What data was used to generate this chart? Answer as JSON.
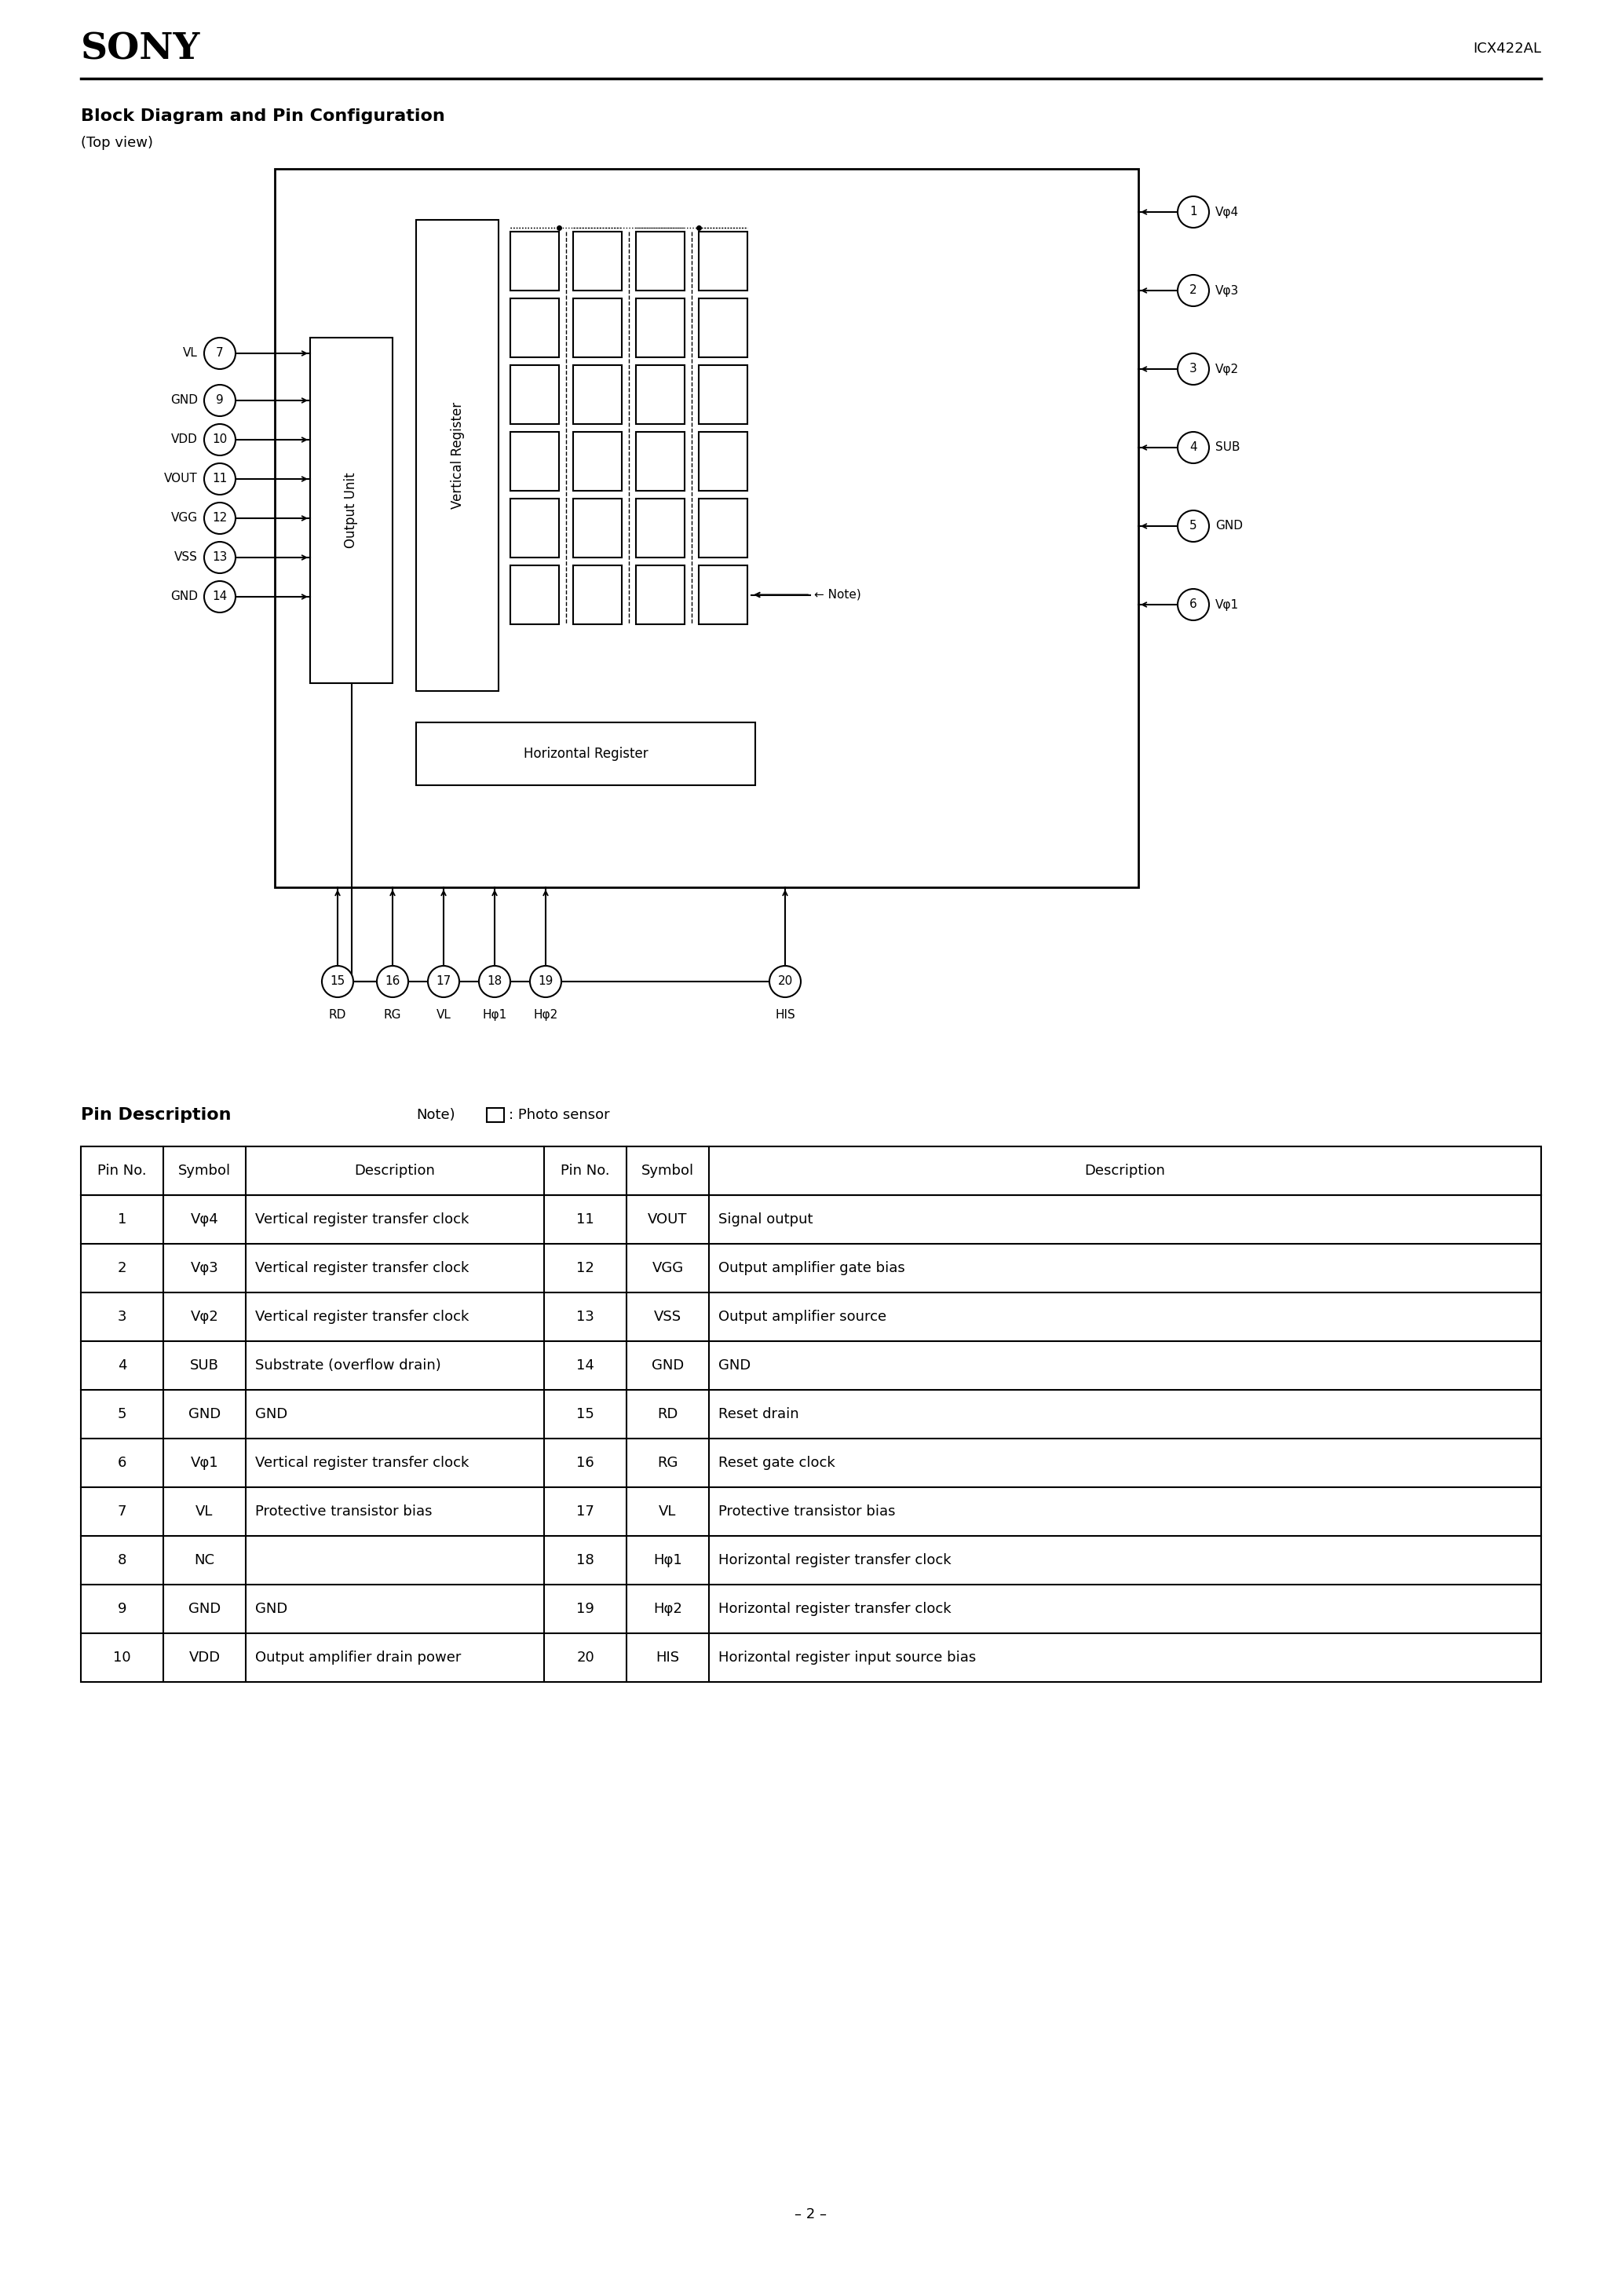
{
  "page_title": "SONY",
  "page_id": "ICX422AL",
  "section1_title": "Block Diagram and Pin Configuration",
  "section1_subtitle": "(Top view)",
  "section2_title": "Pin Description",
  "page_number": "– 2 –",
  "table_headers": [
    "Pin No.",
    "Symbol",
    "Description",
    "Pin No.",
    "Symbol",
    "Description"
  ],
  "table_data": [
    [
      "1",
      "Vφ4",
      "Vertical register transfer clock",
      "11",
      "VOUT",
      "Signal output"
    ],
    [
      "2",
      "Vφ3",
      "Vertical register transfer clock",
      "12",
      "VGG",
      "Output amplifier gate bias"
    ],
    [
      "3",
      "Vφ2",
      "Vertical register transfer clock",
      "13",
      "VSS",
      "Output amplifier source"
    ],
    [
      "4",
      "SUB",
      "Substrate (overflow drain)",
      "14",
      "GND",
      "GND"
    ],
    [
      "5",
      "GND",
      "GND",
      "15",
      "RD",
      "Reset drain"
    ],
    [
      "6",
      "Vφ1",
      "Vertical register transfer clock",
      "16",
      "RG",
      "Reset gate clock"
    ],
    [
      "7",
      "VL",
      "Protective transistor bias",
      "17",
      "VL",
      "Protective transistor bias"
    ],
    [
      "8",
      "NC",
      "",
      "18",
      "Hφ1",
      "Horizontal register transfer clock"
    ],
    [
      "9",
      "GND",
      "GND",
      "19",
      "Hφ2",
      "Horizontal register transfer clock"
    ],
    [
      "10",
      "VDD",
      "Output amplifier drain power",
      "20",
      "HIS",
      "Horizontal register input source bias"
    ]
  ],
  "background": "#ffffff",
  "text_color": "#000000"
}
